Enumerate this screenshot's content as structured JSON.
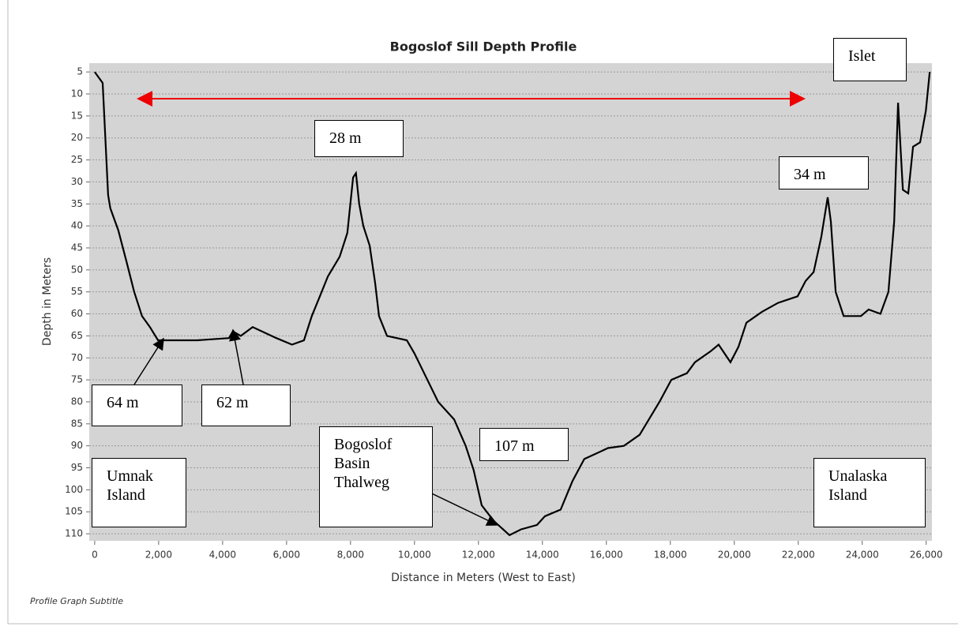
{
  "chart_data": {
    "type": "line",
    "title": "Bogoslof Sill Depth Profile",
    "subtitle": "Profile Graph Subtitle",
    "x_label": "Distance in Meters (West to East)",
    "y_label": "Depth in Meters",
    "x": [
      0,
      250,
      420,
      490,
      740,
      990,
      1235,
      1480,
      1730,
      1980,
      3200,
      4200,
      4320,
      4570,
      4940,
      5680,
      6170,
      6545,
      6790,
      7040,
      7290,
      7660,
      7900,
      8080,
      8170,
      8270,
      8400,
      8600,
      8770,
      8890,
      9140,
      9760,
      10000,
      10370,
      10740,
      11240,
      11600,
      11850,
      12100,
      12470,
      12970,
      13330,
      13830,
      14080,
      14570,
      14940,
      15310,
      16050,
      16550,
      17040,
      17660,
      18030,
      18520,
      18770,
      19260,
      19510,
      19880,
      20130,
      20380,
      20870,
      21370,
      21980,
      22230,
      22480,
      22720,
      22920,
      23020,
      23170,
      23420,
      23960,
      24200,
      24570,
      24820,
      25000,
      25120,
      25270,
      25440,
      25590,
      25810,
      25990,
      26110
    ],
    "series": [
      {
        "name": "Depth",
        "color": "#000000",
        "values": [
          5,
          7.5,
          33,
          36,
          41,
          48,
          55,
          60.5,
          63,
          66,
          66,
          65.5,
          64,
          65,
          63,
          65.5,
          67,
          66,
          60.5,
          56,
          51.5,
          47,
          41.6,
          29,
          28,
          35,
          40,
          44.5,
          53,
          60.5,
          65,
          66,
          69,
          74.5,
          80,
          84,
          90,
          95.5,
          103.5,
          107,
          110.3,
          109,
          108,
          106,
          104.5,
          98,
          93,
          90.5,
          90,
          87.5,
          80,
          75,
          73.5,
          71,
          68.5,
          67,
          71,
          67.5,
          62,
          59.5,
          57.5,
          56,
          52.5,
          50.5,
          42.5,
          33.5,
          39,
          55,
          60.5,
          60.5,
          59,
          60,
          55,
          39,
          12,
          31.8,
          32.6,
          22,
          21,
          13.8,
          5
        ]
      }
    ],
    "xlim": [
      -170,
      26180
    ],
    "ylim": [
      3,
      111.6
    ],
    "y_inverted": true,
    "grid": true,
    "xticks": [
      0,
      {
        "value": 2000,
        "label": "2,000"
      },
      {
        "value": 4000,
        "label": "4,000"
      },
      {
        "value": 6000,
        "label": "6,000"
      },
      {
        "value": 8000,
        "label": "8,000"
      },
      {
        "value": 10000,
        "label": "10,000"
      },
      {
        "value": 12000,
        "label": "12,000"
      },
      {
        "value": 14000,
        "label": "14,000"
      },
      {
        "value": 16000,
        "label": "16,000"
      },
      {
        "value": 18000,
        "label": "18,000"
      },
      {
        "value": 20000,
        "label": "20,000"
      },
      {
        "value": 22000,
        "label": "22,000"
      },
      {
        "value": 24000,
        "label": "24,000"
      },
      {
        "value": 26000,
        "label": "26,000"
      }
    ],
    "yticks": [
      5,
      10,
      15,
      20,
      25,
      30,
      35,
      40,
      45,
      50,
      55,
      60,
      65,
      70,
      75,
      80,
      85,
      90,
      95,
      100,
      105,
      110
    ],
    "annotations": [
      {
        "lines": [
          "Islet"
        ]
      },
      {
        "lines": [
          "28 m"
        ]
      },
      {
        "lines": [
          "34 m"
        ]
      },
      {
        "lines": [
          "64 m"
        ]
      },
      {
        "lines": [
          "62 m"
        ]
      },
      {
        "lines": [
          "107 m"
        ]
      },
      {
        "lines": [
          "Bogoslof",
          "Basin",
          "Thalweg"
        ]
      },
      {
        "lines": [
          "Umnak",
          "Island"
        ]
      },
      {
        "lines": [
          "Unalaska",
          "Island"
        ]
      }
    ]
  }
}
